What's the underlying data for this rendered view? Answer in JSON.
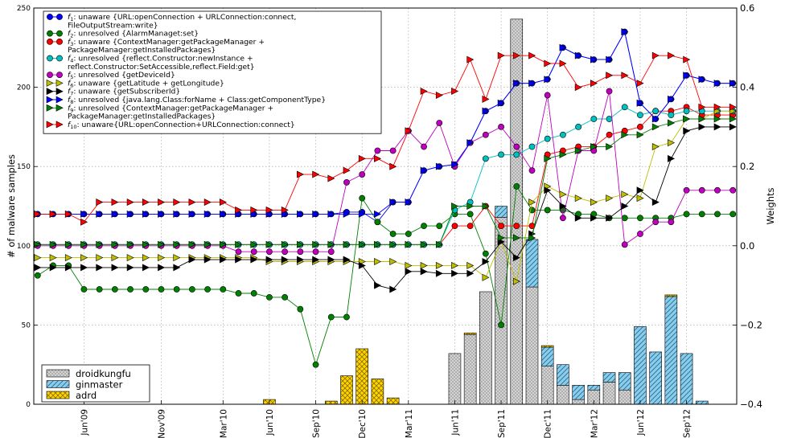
{
  "chart_data": {
    "type": "bar+line",
    "title": "",
    "ylabel": "# of malware samples",
    "y2label": "Weights",
    "ylim": [
      0,
      250
    ],
    "y2lim": [
      -0.4,
      0.6
    ],
    "yticks": [
      0,
      50,
      100,
      150,
      200,
      250
    ],
    "y2ticks": [
      "−0.4",
      "−0.2",
      "0.0",
      "0.2",
      "0.4",
      "0.6"
    ],
    "y2tick_values": [
      -0.4,
      -0.2,
      0.0,
      0.2,
      0.4,
      0.6
    ],
    "grid": true,
    "x_start": "Mar'09",
    "xticks": [
      {
        "label": "Jun'09",
        "i": 3
      },
      {
        "label": "Nov'09",
        "i": 8
      },
      {
        "label": "Mar'10",
        "i": 12
      },
      {
        "label": "Jun'10",
        "i": 15
      },
      {
        "label": "Sep'10",
        "i": 18
      },
      {
        "label": "Dec'10",
        "i": 21
      },
      {
        "label": "Mar'11",
        "i": 24
      },
      {
        "label": "Jun'11",
        "i": 27
      },
      {
        "label": "Sep'11",
        "i": 30
      },
      {
        "label": "Dec'11",
        "i": 33
      },
      {
        "label": "Mar'12",
        "i": 36
      },
      {
        "label": "Jun'12",
        "i": 39
      },
      {
        "label": "Sep'12",
        "i": 42
      }
    ],
    "bars": {
      "legend_position": "lower-left",
      "series": [
        {
          "name": "droidkungfu",
          "color": "#d3d3d3",
          "pattern": "dots",
          "values": [
            0,
            0,
            0,
            0,
            0,
            0,
            0,
            0,
            0,
            0,
            0,
            0,
            0,
            0,
            0,
            0,
            0,
            0,
            0,
            0,
            0,
            0,
            0,
            0,
            0,
            0,
            0,
            32,
            44,
            71,
            118,
            243,
            74,
            24,
            12,
            3,
            9,
            14,
            9,
            0,
            0,
            0,
            0,
            0,
            0,
            0
          ]
        },
        {
          "name": "ginmaster",
          "color": "#87ceeb",
          "pattern": "hatch",
          "values": [
            0,
            0,
            0,
            0,
            0,
            0,
            0,
            0,
            0,
            0,
            0,
            0,
            0,
            0,
            0,
            0,
            0,
            0,
            0,
            0,
            0,
            0,
            0,
            0,
            0,
            0,
            0,
            0,
            0,
            0,
            7,
            0,
            30,
            12,
            13,
            9,
            3,
            6,
            11,
            49,
            33,
            68,
            32,
            2,
            0,
            0
          ]
        },
        {
          "name": "adrd",
          "color": "#ffd700",
          "pattern": "cross",
          "values": [
            0,
            0,
            0,
            0,
            0,
            0,
            0,
            0,
            0,
            0,
            0,
            0,
            0,
            0,
            0,
            3,
            0,
            0,
            0,
            2,
            18,
            35,
            16,
            4,
            0,
            0,
            0,
            0,
            1,
            0,
            0,
            0,
            0,
            1,
            0,
            0,
            0,
            0,
            0,
            0,
            0,
            1,
            0,
            0,
            0,
            0
          ]
        }
      ]
    },
    "lines": {
      "legend_position": "top-left",
      "series": [
        {
          "name": "f1: unaware {URL:openConnection + URLConnection:connect, FileOutputStream:write}",
          "sub": "1",
          "legend_lines": [
            "unaware {URL:openConnection + URLConnection:connect,",
            "FileOutputStream:write}"
          ],
          "color": "#0000ff",
          "marker": "circle",
          "values": [
            0.08,
            0.08,
            0.08,
            0.08,
            0.08,
            0.08,
            0.08,
            0.08,
            0.08,
            0.08,
            0.08,
            0.08,
            0.08,
            0.08,
            0.08,
            0.08,
            0.08,
            0.08,
            0.08,
            0.08,
            0.085,
            0.085,
            0.06,
            0.11,
            0.11,
            0.19,
            0.2,
            0.205,
            0.26,
            0.34,
            0.36,
            0.41,
            0.41,
            0.42,
            0.5,
            0.48,
            0.47,
            0.47,
            0.54,
            0.36,
            0.32,
            0.37,
            0.43,
            0.42,
            0.41,
            0.41
          ]
        },
        {
          "name": "f2: unresolved {AlarmManaget:set}",
          "sub": "2",
          "legend_lines": [
            "unresolved {AlarmManaget:set}"
          ],
          "color": "#008000",
          "marker": "circle",
          "values": [
            -0.075,
            -0.05,
            -0.05,
            -0.11,
            -0.11,
            -0.11,
            -0.11,
            -0.11,
            -0.11,
            -0.11,
            -0.11,
            -0.11,
            -0.11,
            -0.12,
            -0.12,
            -0.13,
            -0.13,
            -0.16,
            -0.3,
            -0.18,
            -0.18,
            0.12,
            0.06,
            0.03,
            0.03,
            0.05,
            0.05,
            0.08,
            0.08,
            -0.02,
            -0.2,
            0.15,
            0.09,
            0.09,
            0.09,
            0.08,
            0.08,
            0.07,
            0.07,
            0.07,
            0.07,
            0.07,
            0.08,
            0.08,
            0.08,
            0.08
          ]
        },
        {
          "name": "f3: unaware {ContextManager:getPackageManager + PackageManager:getInstalledPackages}",
          "sub": "3",
          "legend_lines": [
            "unaware {ContextManager:getPackageManager +",
            "PackageManager:getInstalledPackages}"
          ],
          "color": "#ff0000",
          "marker": "circle",
          "values": [
            0.003,
            0.003,
            0.003,
            0.003,
            0.003,
            0.003,
            0.003,
            0.003,
            0.003,
            0.003,
            0.003,
            0.003,
            0.003,
            0.003,
            0.003,
            0.003,
            0.003,
            0.003,
            0.003,
            0.003,
            0.003,
            0.003,
            0.003,
            0.003,
            0.003,
            0.003,
            0.003,
            0.05,
            0.05,
            0.1,
            0.05,
            0.05,
            0.05,
            0.23,
            0.24,
            0.25,
            0.25,
            0.28,
            0.29,
            0.3,
            0.34,
            0.34,
            0.35,
            0.33,
            0.33,
            0.33
          ]
        },
        {
          "name": "f4: unresolved {reflect.Constructor:newInstance + reflect.Constructor:SetAccessible,reflect.Field:get}",
          "sub": "4",
          "legend_lines": [
            "unresolved {reflect.Constructor:newInstance +",
            "reflect.Constructor:SetAccessible,reflect.Field:get}"
          ],
          "color": "#00bfbf",
          "marker": "circle",
          "values": [
            0.003,
            0.003,
            0.003,
            0.003,
            0.003,
            0.003,
            0.003,
            0.003,
            0.003,
            0.003,
            0.003,
            0.003,
            0.003,
            0.003,
            0.003,
            0.003,
            0.003,
            0.003,
            0.003,
            0.003,
            0.003,
            0.003,
            0.003,
            0.003,
            0.003,
            0.003,
            0.003,
            0.09,
            0.11,
            0.22,
            0.23,
            0.23,
            0.25,
            0.27,
            0.28,
            0.3,
            0.32,
            0.32,
            0.35,
            0.33,
            0.34,
            0.33,
            0.34,
            0.34,
            0.34,
            0.34
          ]
        },
        {
          "name": "f5: unresolved {getDeviceId}",
          "sub": "5",
          "legend_lines": [
            "unresolved {getDeviceId}"
          ],
          "color": "#bf00bf",
          "marker": "circle",
          "values": [
            0,
            0,
            0,
            0,
            0,
            0,
            0,
            0,
            0,
            0,
            0,
            0,
            0,
            -0.015,
            -0.015,
            -0.015,
            -0.015,
            -0.015,
            -0.015,
            -0.015,
            0.16,
            0.18,
            0.24,
            0.24,
            0.29,
            0.25,
            0.31,
            0.2,
            0.26,
            0.28,
            0.3,
            0.25,
            0.19,
            0.38,
            0.07,
            0.24,
            0.24,
            0.39,
            0.003,
            0.03,
            0.06,
            0.06,
            0.14,
            0.14,
            0.14,
            0.14
          ]
        },
        {
          "name": "f6: unaware {getLatitude + getLongitude}",
          "sub": "6",
          "legend_lines": [
            "unaware {getLatitude + getLongitude}"
          ],
          "color": "#bfbf00",
          "marker": "tri-right",
          "values": [
            -0.03,
            -0.03,
            -0.03,
            -0.03,
            -0.03,
            -0.03,
            -0.03,
            -0.03,
            -0.03,
            -0.03,
            -0.03,
            -0.03,
            -0.03,
            -0.03,
            -0.03,
            -0.04,
            -0.04,
            -0.04,
            -0.04,
            -0.04,
            -0.04,
            -0.04,
            -0.04,
            -0.04,
            -0.05,
            -0.05,
            -0.05,
            -0.05,
            -0.05,
            -0.08,
            0.01,
            -0.09,
            0.11,
            0.15,
            0.13,
            0.12,
            0.11,
            0.12,
            0.13,
            0.12,
            0.25,
            0.26,
            0.32,
            0.32,
            0.34,
            0.34
          ]
        },
        {
          "name": "f7: unaware {getSubscriberId}",
          "sub": "7",
          "legend_lines": [
            "unaware {getSubscriberId}"
          ],
          "color": "#000000",
          "marker": "tri-right",
          "values": [
            -0.055,
            -0.055,
            -0.055,
            -0.055,
            -0.055,
            -0.055,
            -0.055,
            -0.055,
            -0.055,
            -0.055,
            -0.035,
            -0.035,
            -0.035,
            -0.035,
            -0.035,
            -0.035,
            -0.035,
            -0.035,
            -0.035,
            -0.035,
            -0.035,
            -0.05,
            -0.1,
            -0.11,
            -0.065,
            -0.065,
            -0.07,
            -0.07,
            -0.07,
            -0.04,
            0.01,
            -0.03,
            0.03,
            0.14,
            0.1,
            0.07,
            0.07,
            0.07,
            0.1,
            0.14,
            0.11,
            0.22,
            0.29,
            0.3,
            0.3,
            0.3
          ]
        },
        {
          "name": "f8: unresolved {java.lang.Class:forName + Class:getComponentType}",
          "sub": "8",
          "legend_lines": [
            "unresolved {java.lang.Class:forName + Class:getComponentType}"
          ],
          "color": "#0000ff",
          "marker": "tri-right",
          "values": [
            0.08,
            0.08,
            0.08,
            0.08,
            0.08,
            0.08,
            0.08,
            0.08,
            0.08,
            0.08,
            0.08,
            0.08,
            0.08,
            0.08,
            0.08,
            0.08,
            0.08,
            0.08,
            0.08,
            0.08,
            0.08,
            0.08,
            0.08,
            0.11,
            0.11,
            0.19,
            0.2,
            0.205,
            0.26,
            0.34,
            0.36,
            0.41,
            0.41,
            0.42,
            0.5,
            0.48,
            0.47,
            0.47,
            0.54,
            0.36,
            0.32,
            0.37,
            0.43,
            0.42,
            0.41,
            0.41
          ]
        },
        {
          "name": "f9: unresolved {ContextManager:getPackageManager + PackageManager:getInstalledPackages}",
          "sub": "9",
          "legend_lines": [
            "unresolved {ContextManager:getPackageManager +",
            "PackageManager:getInstalledPackages}"
          ],
          "color": "#008000",
          "marker": "tri-right",
          "values": [
            0.003,
            0.003,
            0.003,
            0.003,
            0.003,
            0.003,
            0.003,
            0.003,
            0.003,
            0.003,
            0.003,
            0.003,
            0.003,
            0.003,
            0.003,
            0.003,
            0.003,
            0.003,
            0.003,
            0.003,
            0.003,
            0.003,
            0.003,
            0.003,
            0.003,
            0.003,
            0.003,
            0.1,
            0.1,
            0.1,
            0.02,
            0.02,
            0.02,
            0.22,
            0.23,
            0.24,
            0.25,
            0.25,
            0.28,
            0.28,
            0.3,
            0.31,
            0.32,
            0.32,
            0.32,
            0.32
          ]
        },
        {
          "name": "f10: unaware{URL:openConnection+URLConnection:connect}",
          "sub": "10",
          "legend_lines": [
            "unaware{URL:openConnection+URLConnection:connect}"
          ],
          "color": "#ff0000",
          "marker": "tri-right",
          "values": [
            0.08,
            0.08,
            0.08,
            0.06,
            0.11,
            0.11,
            0.11,
            0.11,
            0.11,
            0.11,
            0.11,
            0.11,
            0.11,
            0.09,
            0.09,
            0.09,
            0.09,
            0.18,
            0.18,
            0.17,
            0.19,
            0.22,
            0.22,
            0.2,
            0.29,
            0.39,
            0.38,
            0.39,
            0.47,
            0.37,
            0.48,
            0.48,
            0.48,
            0.46,
            0.46,
            0.4,
            0.41,
            0.43,
            0.43,
            0.41,
            0.48,
            0.48,
            0.47,
            0.35,
            0.35,
            0.35
          ]
        }
      ]
    }
  }
}
